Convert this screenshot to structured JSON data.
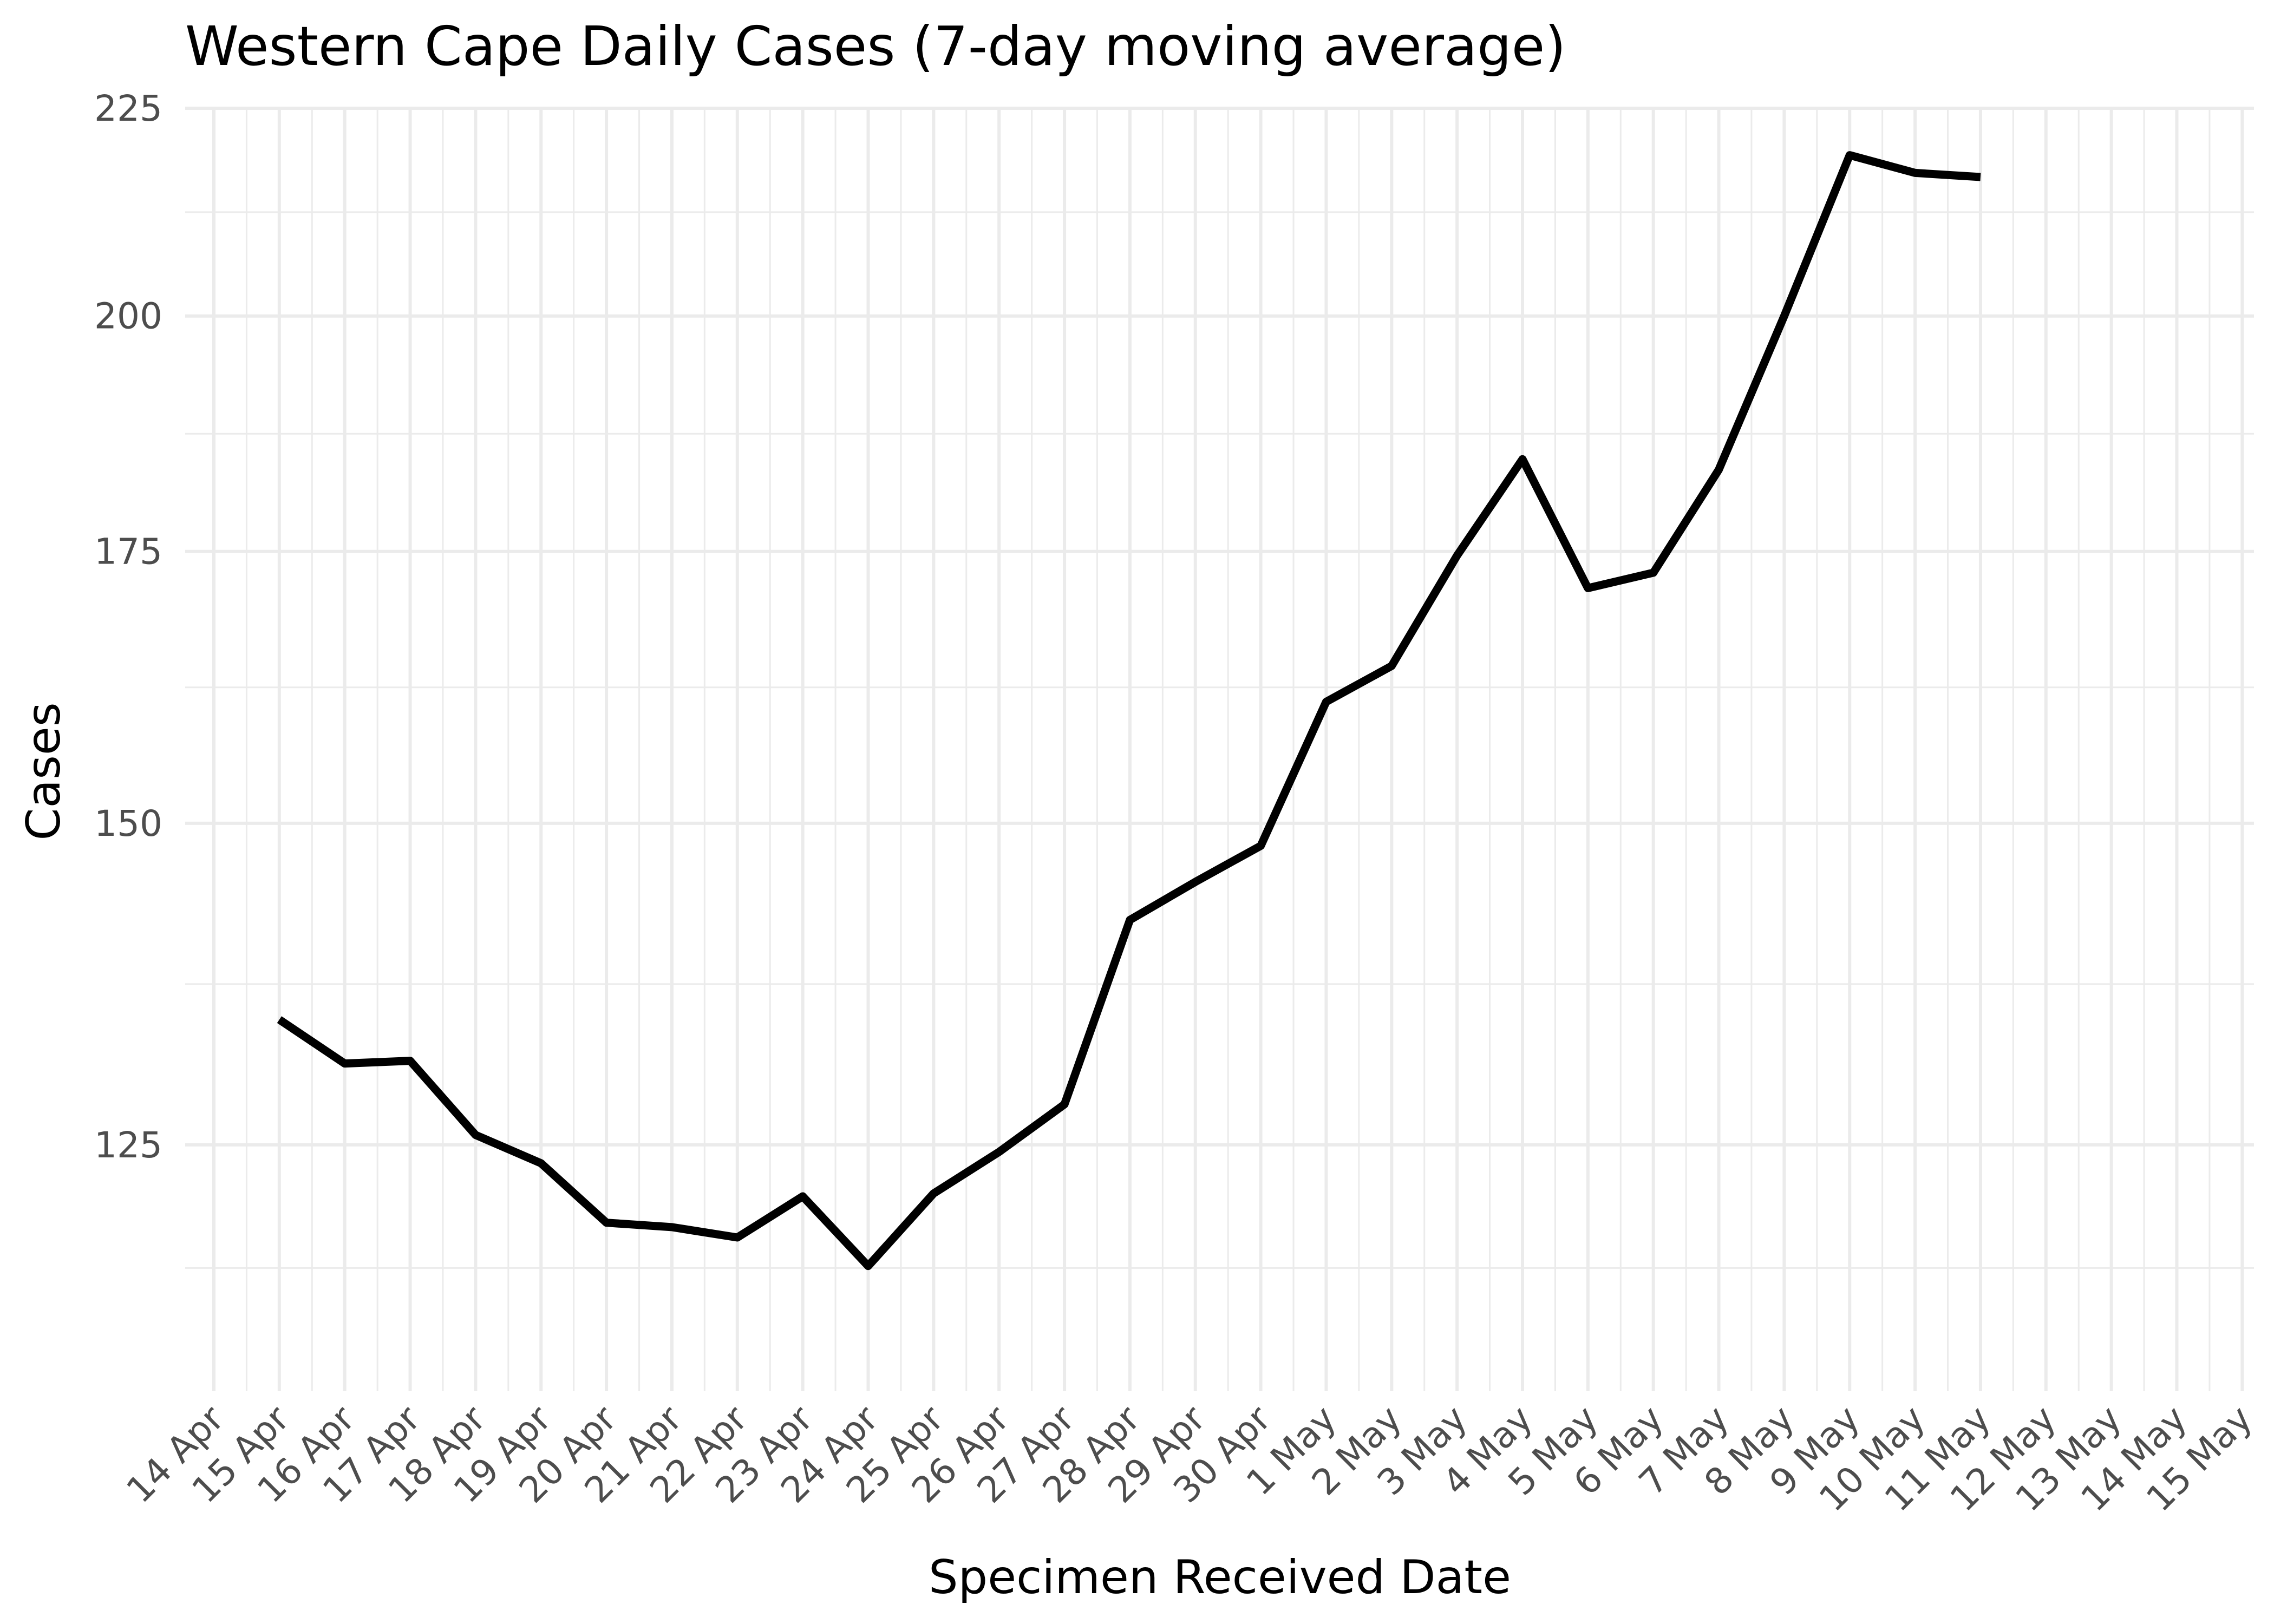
{
  "chart_data": {
    "type": "line",
    "title": "Western Cape Daily Cases (7-day moving average)",
    "xlabel": "Specimen Received Date",
    "ylabel": "Cases",
    "x_ticks": [
      "14 Apr",
      "15 Apr",
      "16 Apr",
      "17 Apr",
      "18 Apr",
      "19 Apr",
      "20 Apr",
      "21 Apr",
      "22 Apr",
      "23 Apr",
      "24 Apr",
      "25 Apr",
      "26 Apr",
      "27 Apr",
      "28 Apr",
      "29 Apr",
      "30 Apr",
      "1 May",
      "2 May",
      "3 May",
      "4 May",
      "5 May",
      "6 May",
      "7 May",
      "8 May",
      "9 May",
      "10 May",
      "11 May",
      "12 May",
      "13 May",
      "14 May",
      "15 May"
    ],
    "y_ticks": [
      125,
      150,
      175,
      200,
      225
    ],
    "ylim": [
      108.7,
      225
    ],
    "y_scale": "log",
    "grid": true,
    "x": [
      "15 Apr",
      "16 Apr",
      "17 Apr",
      "18 Apr",
      "19 Apr",
      "20 Apr",
      "21 Apr",
      "22 Apr",
      "23 Apr",
      "24 Apr",
      "25 Apr",
      "26 Apr",
      "27 Apr",
      "28 Apr",
      "29 Apr",
      "30 Apr",
      "1 May",
      "2 May",
      "3 May",
      "4 May",
      "5 May",
      "6 May",
      "7 May",
      "8 May",
      "9 May",
      "10 May",
      "11 May"
    ],
    "values": [
      134.2,
      130.9,
      131.1,
      125.7,
      123.7,
      119.6,
      119.3,
      118.6,
      121.4,
      116.7,
      121.6,
      124.5,
      127.9,
      142.0,
      145.1,
      148.1,
      160.7,
      164.0,
      174.6,
      184.4,
      171.4,
      172.9,
      183.3,
      200.0,
      219.1,
      216.9,
      216.4
    ],
    "colors": {
      "line": "#000000",
      "grid": "#ebebeb",
      "tick_text": "#4d4d4d"
    }
  }
}
